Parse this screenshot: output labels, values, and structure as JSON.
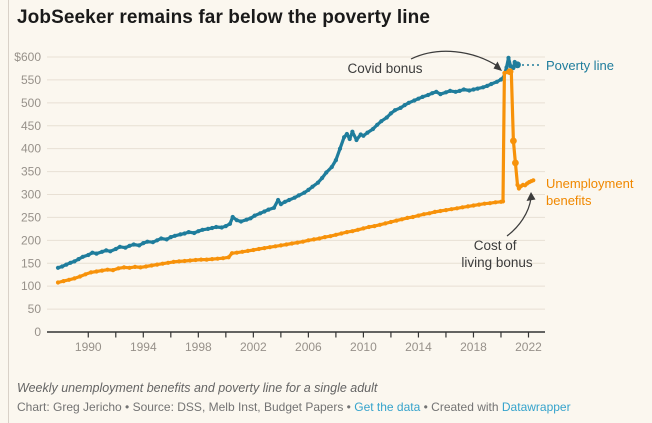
{
  "window": {
    "background": "#fbf7ef"
  },
  "chart_data": {
    "type": "line",
    "title": "JobSeeker remains far below the poverty line",
    "xlabel": "",
    "ylabel": "",
    "grid": "horizontal",
    "legend_position": "inline-right",
    "x_axis": {
      "min": 1987.0,
      "max": 2023.2,
      "ticks": [
        {
          "v": 1990,
          "label": "1990"
        },
        {
          "v": 1992,
          "label": ""
        },
        {
          "v": 1994,
          "label": "1994"
        },
        {
          "v": 1996,
          "label": ""
        },
        {
          "v": 1998,
          "label": "1998"
        },
        {
          "v": 2000,
          "label": ""
        },
        {
          "v": 2002,
          "label": "2002"
        },
        {
          "v": 2004,
          "label": ""
        },
        {
          "v": 2006,
          "label": "2006"
        },
        {
          "v": 2008,
          "label": ""
        },
        {
          "v": 2010,
          "label": "2010"
        },
        {
          "v": 2012,
          "label": ""
        },
        {
          "v": 2014,
          "label": "2014"
        },
        {
          "v": 2016,
          "label": ""
        },
        {
          "v": 2018,
          "label": "2018"
        },
        {
          "v": 2020,
          "label": ""
        },
        {
          "v": 2022,
          "label": "2022"
        }
      ]
    },
    "y_axis": {
      "min": 0,
      "max": 600,
      "ticks": [
        {
          "v": 600,
          "label": "$600"
        },
        {
          "v": 550,
          "label": "550"
        },
        {
          "v": 500,
          "label": "500"
        },
        {
          "v": 450,
          "label": "450"
        },
        {
          "v": 400,
          "label": "400"
        },
        {
          "v": 350,
          "label": "350"
        },
        {
          "v": 300,
          "label": "300"
        },
        {
          "v": 250,
          "label": "250"
        },
        {
          "v": 200,
          "label": "200"
        },
        {
          "v": 150,
          "label": "150"
        },
        {
          "v": 100,
          "label": "100"
        },
        {
          "v": 50,
          "label": "50"
        },
        {
          "v": 0,
          "label": "0"
        }
      ]
    },
    "series": [
      {
        "name": "Poverty line",
        "slug": "poverty-line",
        "color": "#1f7d9c",
        "points": [
          [
            1987.8,
            140
          ],
          [
            1988.1,
            143
          ],
          [
            1988.4,
            147
          ],
          [
            1988.7,
            151
          ],
          [
            1989,
            154
          ],
          [
            1989.3,
            159
          ],
          [
            1989.6,
            164
          ],
          [
            1990,
            168
          ],
          [
            1990.3,
            173
          ],
          [
            1990.6,
            171
          ],
          [
            1991,
            175
          ],
          [
            1991.3,
            178
          ],
          [
            1991.6,
            176
          ],
          [
            1992,
            181
          ],
          [
            1992.3,
            186
          ],
          [
            1992.7,
            184
          ],
          [
            1993,
            188
          ],
          [
            1993.3,
            191
          ],
          [
            1993.7,
            189
          ],
          [
            1994,
            194
          ],
          [
            1994.3,
            197
          ],
          [
            1994.7,
            196
          ],
          [
            1995,
            200
          ],
          [
            1995.3,
            204
          ],
          [
            1995.7,
            202
          ],
          [
            1996,
            207
          ],
          [
            1996.3,
            210
          ],
          [
            1996.7,
            213
          ],
          [
            1997,
            215
          ],
          [
            1997.3,
            218
          ],
          [
            1997.7,
            216
          ],
          [
            1998,
            220
          ],
          [
            1998.3,
            223
          ],
          [
            1998.7,
            225
          ],
          [
            1999,
            227
          ],
          [
            1999.3,
            229
          ],
          [
            1999.7,
            228
          ],
          [
            2000,
            231
          ],
          [
            2000.3,
            236
          ],
          [
            2000.5,
            251
          ],
          [
            2000.8,
            244
          ],
          [
            2001.1,
            241
          ],
          [
            2001.5,
            245
          ],
          [
            2001.8,
            248
          ],
          [
            2002.1,
            254
          ],
          [
            2002.5,
            259
          ],
          [
            2002.8,
            263
          ],
          [
            2003.1,
            267
          ],
          [
            2003.5,
            271
          ],
          [
            2003.8,
            288
          ],
          [
            2004,
            279
          ],
          [
            2004.3,
            284
          ],
          [
            2004.6,
            288
          ],
          [
            2005,
            293
          ],
          [
            2005.3,
            298
          ],
          [
            2005.7,
            304
          ],
          [
            2006,
            310
          ],
          [
            2006.3,
            317
          ],
          [
            2006.7,
            326
          ],
          [
            2007,
            336
          ],
          [
            2007.3,
            348
          ],
          [
            2007.7,
            360
          ],
          [
            2008,
            375
          ],
          [
            2008.3,
            400
          ],
          [
            2008.6,
            425
          ],
          [
            2008.8,
            432
          ],
          [
            2009,
            421
          ],
          [
            2009.2,
            437
          ],
          [
            2009.5,
            419
          ],
          [
            2009.8,
            431
          ],
          [
            2010,
            428
          ],
          [
            2010.3,
            435
          ],
          [
            2010.7,
            443
          ],
          [
            2011,
            452
          ],
          [
            2011.3,
            460
          ],
          [
            2011.7,
            468
          ],
          [
            2012,
            477
          ],
          [
            2012.3,
            484
          ],
          [
            2012.7,
            489
          ],
          [
            2013,
            495
          ],
          [
            2013.3,
            500
          ],
          [
            2013.7,
            505
          ],
          [
            2014,
            509
          ],
          [
            2014.3,
            513
          ],
          [
            2014.7,
            517
          ],
          [
            2015,
            521
          ],
          [
            2015.3,
            524
          ],
          [
            2015.6,
            519
          ],
          [
            2016,
            523
          ],
          [
            2016.3,
            526
          ],
          [
            2016.7,
            524
          ],
          [
            2017,
            526
          ],
          [
            2017.3,
            529
          ],
          [
            2017.7,
            527
          ],
          [
            2018,
            529
          ],
          [
            2018.3,
            531
          ],
          [
            2018.7,
            534
          ],
          [
            2019,
            537
          ],
          [
            2019.3,
            541
          ],
          [
            2019.7,
            546
          ],
          [
            2020,
            551
          ],
          [
            2020.2,
            556
          ],
          [
            2020.4,
            577
          ],
          [
            2020.55,
            598
          ],
          [
            2020.7,
            580
          ],
          [
            2020.9,
            576
          ],
          [
            2021,
            589
          ],
          [
            2021.2,
            583
          ]
        ],
        "markers": [
          [
            2021.2,
            583
          ]
        ]
      },
      {
        "name": "Unemployment benefits",
        "slug": "unemployment-benefits",
        "color": "#f7920a",
        "points": [
          [
            1987.8,
            108
          ],
          [
            1988.2,
            111
          ],
          [
            1988.6,
            114
          ],
          [
            1989,
            117
          ],
          [
            1989.4,
            121
          ],
          [
            1989.8,
            126
          ],
          [
            1990.2,
            130
          ],
          [
            1990.6,
            132
          ],
          [
            1991,
            134
          ],
          [
            1991.4,
            136
          ],
          [
            1991.8,
            135
          ],
          [
            1992.2,
            139
          ],
          [
            1992.6,
            141
          ],
          [
            1993,
            140
          ],
          [
            1993.4,
            142
          ],
          [
            1993.8,
            141
          ],
          [
            1994.2,
            143
          ],
          [
            1994.6,
            145
          ],
          [
            1995,
            147
          ],
          [
            1995.4,
            149
          ],
          [
            1995.8,
            151
          ],
          [
            1996.2,
            153
          ],
          [
            1996.6,
            154
          ],
          [
            1997,
            155
          ],
          [
            1997.4,
            156
          ],
          [
            1997.8,
            157
          ],
          [
            1998.2,
            158
          ],
          [
            1998.6,
            158
          ],
          [
            1999,
            159
          ],
          [
            1999.4,
            160
          ],
          [
            1999.8,
            161
          ],
          [
            2000.2,
            163
          ],
          [
            2000.45,
            172
          ],
          [
            2000.8,
            173
          ],
          [
            2001.2,
            175
          ],
          [
            2001.6,
            177
          ],
          [
            2002,
            179
          ],
          [
            2002.4,
            181
          ],
          [
            2002.8,
            183
          ],
          [
            2003.2,
            185
          ],
          [
            2003.6,
            187
          ],
          [
            2004,
            189
          ],
          [
            2004.4,
            191
          ],
          [
            2004.8,
            193
          ],
          [
            2005.2,
            195
          ],
          [
            2005.6,
            197
          ],
          [
            2006,
            200
          ],
          [
            2006.4,
            202
          ],
          [
            2006.8,
            204
          ],
          [
            2007.2,
            207
          ],
          [
            2007.6,
            209
          ],
          [
            2008,
            212
          ],
          [
            2008.4,
            215
          ],
          [
            2008.8,
            218
          ],
          [
            2009.2,
            220
          ],
          [
            2009.6,
            223
          ],
          [
            2010,
            226
          ],
          [
            2010.4,
            229
          ],
          [
            2010.8,
            231
          ],
          [
            2011.2,
            234
          ],
          [
            2011.6,
            237
          ],
          [
            2012,
            240
          ],
          [
            2012.4,
            243
          ],
          [
            2012.8,
            246
          ],
          [
            2013.2,
            249
          ],
          [
            2013.6,
            251
          ],
          [
            2014,
            254
          ],
          [
            2014.4,
            257
          ],
          [
            2014.8,
            259
          ],
          [
            2015.2,
            262
          ],
          [
            2015.6,
            264
          ],
          [
            2016,
            266
          ],
          [
            2016.4,
            268
          ],
          [
            2016.8,
            270
          ],
          [
            2017.2,
            272
          ],
          [
            2017.6,
            274
          ],
          [
            2018,
            276
          ],
          [
            2018.4,
            278
          ],
          [
            2018.8,
            280
          ],
          [
            2019.2,
            281
          ],
          [
            2019.6,
            283
          ],
          [
            2020,
            284
          ],
          [
            2020.15,
            285
          ],
          [
            2020.25,
            565
          ],
          [
            2020.5,
            567
          ],
          [
            2020.75,
            568
          ],
          [
            2020.9,
            417
          ],
          [
            2021.05,
            369
          ],
          [
            2021.2,
            321
          ],
          [
            2021.3,
            313
          ],
          [
            2021.45,
            318
          ],
          [
            2021.6,
            321
          ],
          [
            2021.75,
            320
          ],
          [
            2021.9,
            324
          ],
          [
            2022.05,
            327
          ],
          [
            2022.2,
            329
          ],
          [
            2022.35,
            331
          ]
        ],
        "markers": [
          [
            2020.65,
            568
          ],
          [
            2020.9,
            417
          ],
          [
            2021.05,
            369
          ]
        ]
      }
    ],
    "annotations": {
      "covid_bonus": "Covid bonus",
      "poverty_line": "Poverty line",
      "unemployment": [
        "Unemployment",
        "benefits"
      ],
      "cost_of_living": [
        "Cost of",
        "living bonus"
      ]
    }
  },
  "footer": {
    "note": "Weekly unemployment benefits and poverty line for a single adult",
    "credit_prefix": "Chart: Greg Jericho • Source: DSS, Melb Inst, Budget Papers •",
    "get_data_link": "Get the data",
    "separator": "•",
    "created_with": "Created with",
    "datawrapper_link": "Datawrapper",
    "link_color": "#35a3cc"
  }
}
